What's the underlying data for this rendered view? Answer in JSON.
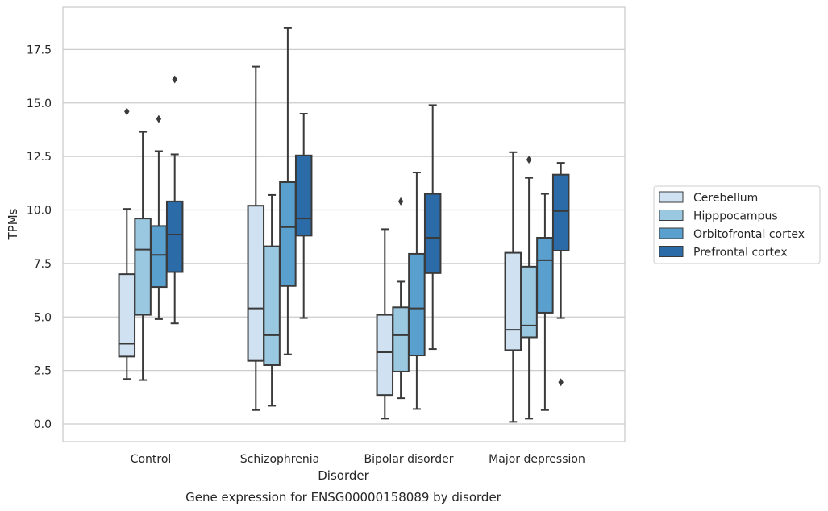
{
  "chart_data": {
    "type": "boxplot",
    "title": "Gene expression for ENSG00000158089 by disorder",
    "xlabel": "Disorder",
    "ylabel": "TPMs",
    "ylim": [
      -0.8,
      19.5
    ],
    "yticks": [
      0.0,
      2.5,
      5.0,
      7.5,
      10.0,
      12.5,
      15.0,
      17.5
    ],
    "ytick_labels": [
      "0.0",
      "2.5",
      "5.0",
      "7.5",
      "10.0",
      "12.5",
      "15.0",
      "17.5"
    ],
    "grid": true,
    "legend_position": "right",
    "categories": [
      "Control",
      "Schizophrenia",
      "Bipolar disorder",
      "Major depression"
    ],
    "series": [
      {
        "name": "Cerebellum",
        "color": "#d0e1f2",
        "boxes": [
          {
            "whisker_low": 2.1,
            "q1": 3.15,
            "median": 3.75,
            "q3": 7.0,
            "whisker_high": 10.05,
            "outliers": [
              14.6
            ]
          },
          {
            "whisker_low": 0.65,
            "q1": 2.95,
            "median": 5.4,
            "q3": 10.2,
            "whisker_high": 16.7,
            "outliers": []
          },
          {
            "whisker_low": 0.25,
            "q1": 1.35,
            "median": 3.35,
            "q3": 5.1,
            "whisker_high": 9.1,
            "outliers": []
          },
          {
            "whisker_low": 0.1,
            "q1": 3.45,
            "median": 4.4,
            "q3": 8.0,
            "whisker_high": 12.7,
            "outliers": []
          }
        ]
      },
      {
        "name": "Hipppocampus",
        "color": "#9ac8e0",
        "boxes": [
          {
            "whisker_low": 2.05,
            "q1": 5.1,
            "median": 8.15,
            "q3": 9.6,
            "whisker_high": 13.65,
            "outliers": []
          },
          {
            "whisker_low": 0.85,
            "q1": 2.75,
            "median": 4.15,
            "q3": 8.3,
            "whisker_high": 10.7,
            "outliers": []
          },
          {
            "whisker_low": 1.2,
            "q1": 2.45,
            "median": 4.15,
            "q3": 5.45,
            "whisker_high": 6.65,
            "outliers": [
              10.4
            ]
          },
          {
            "whisker_low": 0.25,
            "q1": 4.05,
            "median": 4.6,
            "q3": 7.35,
            "whisker_high": 11.5,
            "outliers": [
              12.35
            ]
          }
        ]
      },
      {
        "name": "Orbitofrontal cortex",
        "color": "#5aa0ce",
        "boxes": [
          {
            "whisker_low": 4.9,
            "q1": 6.4,
            "median": 7.9,
            "q3": 9.25,
            "whisker_high": 12.75,
            "outliers": [
              14.25
            ]
          },
          {
            "whisker_low": 3.25,
            "q1": 6.45,
            "median": 9.2,
            "q3": 11.3,
            "whisker_high": 18.5,
            "outliers": []
          },
          {
            "whisker_low": 0.7,
            "q1": 3.2,
            "median": 5.4,
            "q3": 7.95,
            "whisker_high": 11.75,
            "outliers": []
          },
          {
            "whisker_low": 0.65,
            "q1": 5.2,
            "median": 7.65,
            "q3": 8.7,
            "whisker_high": 10.75,
            "outliers": []
          }
        ]
      },
      {
        "name": "Prefrontal cortex",
        "color": "#2b6ca8",
        "boxes": [
          {
            "whisker_low": 4.7,
            "q1": 7.1,
            "median": 8.85,
            "q3": 10.4,
            "whisker_high": 12.6,
            "outliers": [
              16.1
            ]
          },
          {
            "whisker_low": 4.95,
            "q1": 8.8,
            "median": 9.6,
            "q3": 12.55,
            "whisker_high": 14.5,
            "outliers": []
          },
          {
            "whisker_low": 3.5,
            "q1": 7.05,
            "median": 8.7,
            "q3": 10.75,
            "whisker_high": 14.9,
            "outliers": []
          },
          {
            "whisker_low": 4.95,
            "q1": 8.1,
            "median": 9.95,
            "q3": 11.65,
            "whisker_high": 12.2,
            "outliers": [
              1.95
            ]
          }
        ]
      }
    ]
  }
}
